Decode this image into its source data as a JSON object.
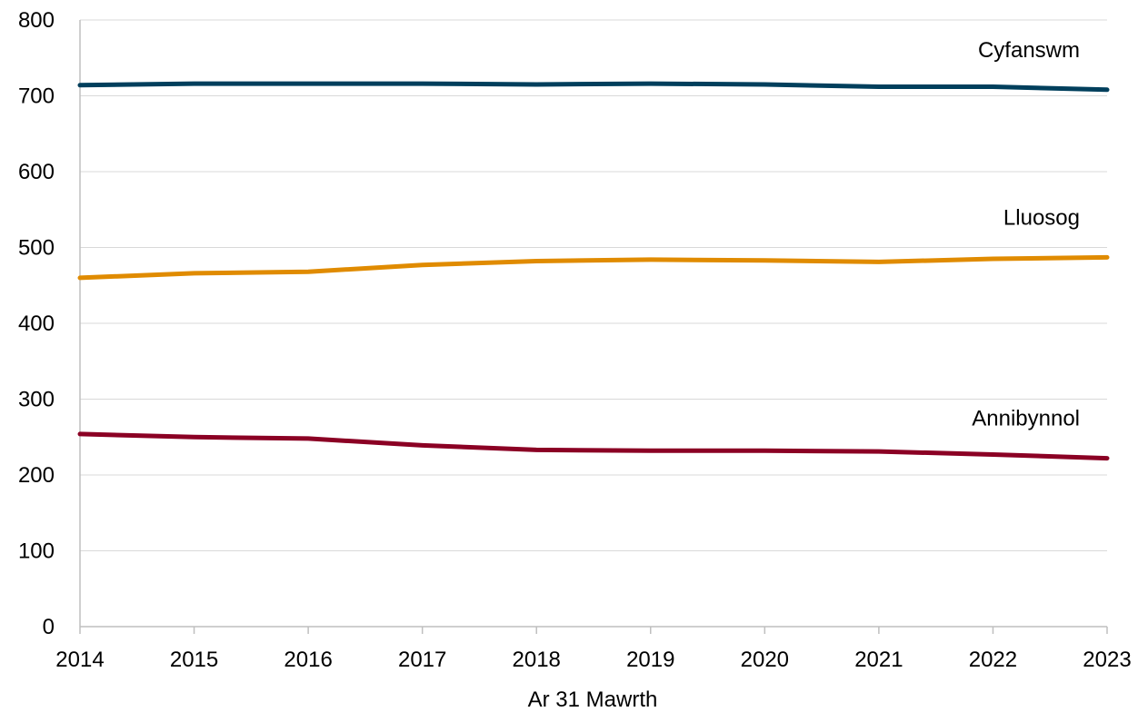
{
  "chart_data": {
    "type": "line",
    "title": "",
    "xlabel": "Ar 31 Mawrth",
    "ylabel": "",
    "x": [
      "2014",
      "2015",
      "2016",
      "2017",
      "2018",
      "2019",
      "2020",
      "2021",
      "2022",
      "2023"
    ],
    "ylim": [
      0,
      800
    ],
    "yticks": [
      "0",
      "100",
      "200",
      "300",
      "400",
      "500",
      "600",
      "700",
      "800"
    ],
    "grid": true,
    "legend": "inline labels at right end of each line",
    "series": [
      {
        "name": "Cyfanswm",
        "color": "#003f5c",
        "values": [
          714,
          716,
          716,
          716,
          715,
          716,
          715,
          712,
          712,
          708
        ]
      },
      {
        "name": "Lluosog",
        "color": "#e08b00",
        "values": [
          460,
          466,
          468,
          477,
          482,
          484,
          483,
          481,
          485,
          487
        ]
      },
      {
        "name": "Annibynnol",
        "color": "#8b0024",
        "values": [
          254,
          250,
          248,
          239,
          233,
          232,
          232,
          231,
          227,
          222
        ]
      }
    ]
  }
}
